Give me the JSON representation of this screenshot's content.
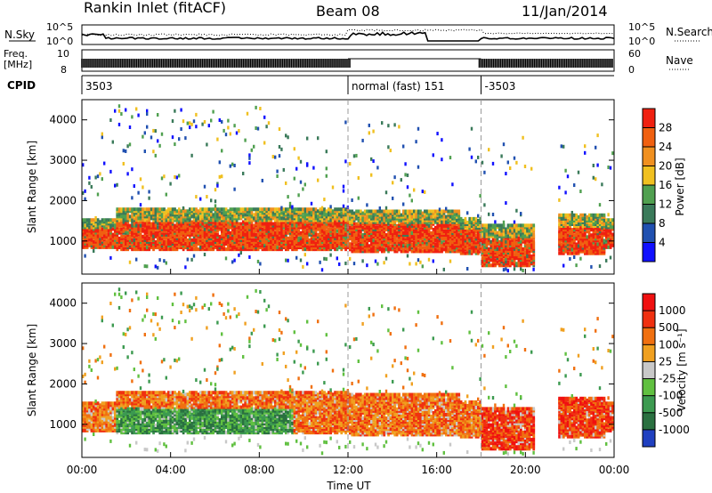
{
  "header": {
    "station": "Rankin Inlet (fitACF)",
    "beam": "Beam 08",
    "date": "11/Jan/2014"
  },
  "panels": {
    "nsky_label": "N.Sky",
    "nsearch_label": "N.Search",
    "freq_label_line1": "Freq.",
    "freq_label_line2": "[MHz]",
    "nave_label": "Nave",
    "cpid_label": "CPID",
    "nsky_ticks": [
      "10^5",
      "10^0"
    ],
    "nsearch_ticks": [
      "10^5",
      "10^0"
    ],
    "freq_ticks": [
      "10",
      "8"
    ],
    "nave_ticks": [
      "60",
      "0"
    ],
    "cpid_segments": [
      {
        "start": 0.0,
        "end": 12.0,
        "label": "3503"
      },
      {
        "start": 12.0,
        "end": 18.0,
        "label": "normal (fast) 151"
      },
      {
        "start": 18.0,
        "end": 24.0,
        "label": "-3503"
      }
    ]
  },
  "chart_data": [
    {
      "type": "heatmap",
      "name": "power",
      "ylabel": "Slant Range [km]",
      "xlabel": "",
      "xlim": [
        0,
        24
      ],
      "ylim": [
        180,
        4500
      ],
      "yticks": [
        "1000",
        "2000",
        "3000",
        "4000"
      ],
      "colorbar_label": "Power [dB]",
      "colorbar_ticks": [
        "28",
        "24",
        "20",
        "16",
        "12",
        "8",
        "4"
      ],
      "colorscale": [
        "#1010ff",
        "#2050b0",
        "#3a7a5a",
        "#50a050",
        "#f0c020",
        "#f09020",
        "#f06010",
        "#f02010"
      ],
      "main_band_km": [
        750,
        1900
      ],
      "dashed_times": [
        12.0,
        18.0
      ]
    },
    {
      "type": "heatmap",
      "name": "velocity",
      "ylabel": "Slant Range [km]",
      "xlabel": "Time UT",
      "xlim": [
        0,
        24
      ],
      "ylim": [
        180,
        4500
      ],
      "yticks": [
        "1000",
        "2000",
        "3000",
        "4000"
      ],
      "colorbar_label": "Velocity [m s⁻¹]",
      "colorbar_ticks": [
        "1000",
        "500",
        "100",
        "25",
        "-25",
        "-100",
        "-500",
        "-1000"
      ],
      "colorscale": [
        "#2040c0",
        "#2a7040",
        "#3c9a50",
        "#60c040",
        "#c8c8c8",
        "#f0a020",
        "#f07010",
        "#f03010",
        "#f01010"
      ],
      "xticks": [
        "00:00",
        "04:00",
        "08:00",
        "12:00",
        "16:00",
        "20:00",
        "00:00"
      ],
      "dashed_times": [
        12.0,
        18.0
      ]
    }
  ]
}
